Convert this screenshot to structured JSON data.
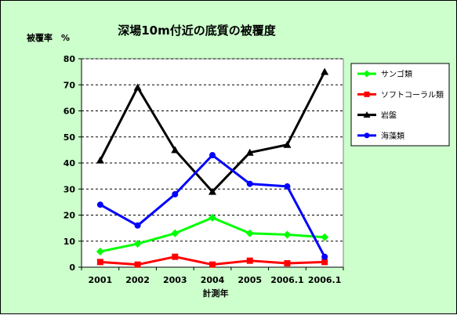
{
  "chart_data": {
    "type": "line",
    "title": "深場10m付近の底質の被覆度",
    "ylabel": "被覆率　%",
    "xlabel": "計測年",
    "categories": [
      "2001",
      "2002",
      "2003",
      "2004",
      "2005",
      "2006.1",
      "2006.1"
    ],
    "ylim": [
      0,
      80
    ],
    "yticks": [
      0,
      10,
      20,
      30,
      40,
      50,
      60,
      70,
      80
    ],
    "grid": "horizontal-dashed",
    "legend_position": "right",
    "background_color": "#ccffcc",
    "plot_background_color": "#ffffff",
    "series": [
      {
        "name": "サンゴ類",
        "color": "#00ff00",
        "marker": "diamond",
        "values": [
          6,
          9,
          13,
          19,
          13,
          12.5,
          11.5
        ]
      },
      {
        "name": "ソフトコーラル類",
        "color": "#ff0000",
        "marker": "square",
        "values": [
          2,
          1,
          4,
          1,
          2.5,
          1.5,
          2
        ]
      },
      {
        "name": "岩盤",
        "color": "#000000",
        "marker": "triangle",
        "values": [
          41,
          69,
          45,
          29,
          44,
          47,
          75
        ]
      },
      {
        "name": "海藻類",
        "color": "#0000ff",
        "marker": "circle",
        "values": [
          24,
          16,
          28,
          43,
          32,
          31,
          4
        ]
      }
    ]
  }
}
